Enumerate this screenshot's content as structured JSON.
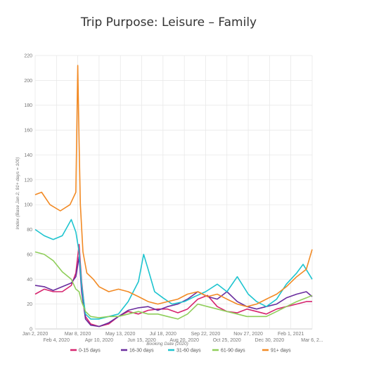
{
  "chart_data": {
    "type": "line",
    "title": "Trip Purpose: Leisure – Family",
    "xlabel": "Booking Date (2020)",
    "ylabel": "Index (Base Jan 2, 91+ days = 100)",
    "ylim": [
      0,
      220
    ],
    "yticks": [
      0,
      20,
      40,
      60,
      80,
      100,
      120,
      140,
      160,
      180,
      200,
      220
    ],
    "xlim": [
      "2020-01-02",
      "2021-03-06"
    ],
    "grid": true,
    "legend_position": "bottom",
    "xticks": [
      {
        "date": "2020-01-02",
        "label": "Jan 2, 2020",
        "row": 0
      },
      {
        "date": "2020-02-04",
        "label": "Feb 4, 2020",
        "row": 1
      },
      {
        "date": "2020-03-08",
        "label": "Mar 8, 2020",
        "row": 0
      },
      {
        "date": "2020-04-10",
        "label": "Apr 10, 2020",
        "row": 1
      },
      {
        "date": "2020-05-13",
        "label": "May 13, 2020",
        "row": 0
      },
      {
        "date": "2020-06-15",
        "label": "Jun 15, 2020",
        "row": 1
      },
      {
        "date": "2020-07-18",
        "label": "Jul 18, 2020",
        "row": 0
      },
      {
        "date": "2020-08-20",
        "label": "Aug 20, 2020",
        "row": 1
      },
      {
        "date": "2020-09-22",
        "label": "Sep 22, 2020",
        "row": 0
      },
      {
        "date": "2020-10-25",
        "label": "Oct 25, 2020",
        "row": 1
      },
      {
        "date": "2020-11-27",
        "label": "Nov 27, 2020",
        "row": 0
      },
      {
        "date": "2020-12-30",
        "label": "Dec 30, 2020",
        "row": 1
      },
      {
        "date": "2021-02-01",
        "label": "Feb 1, 2021",
        "row": 0
      },
      {
        "date": "2021-03-06",
        "label": "Mar 6, 2...",
        "row": 1
      }
    ],
    "series": [
      {
        "name": "0-15 days",
        "color": "#d6246e",
        "points": [
          [
            "2020-01-02",
            28
          ],
          [
            "2020-01-16",
            32
          ],
          [
            "2020-01-30",
            30
          ],
          [
            "2020-02-13",
            30
          ],
          [
            "2020-02-27",
            35
          ],
          [
            "2020-03-05",
            45
          ],
          [
            "2020-03-10",
            68
          ],
          [
            "2020-03-14",
            38
          ],
          [
            "2020-03-20",
            10
          ],
          [
            "2020-03-28",
            4
          ],
          [
            "2020-04-10",
            2
          ],
          [
            "2020-04-25",
            4
          ],
          [
            "2020-05-10",
            10
          ],
          [
            "2020-05-25",
            14
          ],
          [
            "2020-06-10",
            12
          ],
          [
            "2020-06-25",
            15
          ],
          [
            "2020-07-10",
            16
          ],
          [
            "2020-07-25",
            16
          ],
          [
            "2020-08-10",
            13
          ],
          [
            "2020-08-25",
            16
          ],
          [
            "2020-09-10",
            24
          ],
          [
            "2020-09-25",
            27
          ],
          [
            "2020-10-10",
            18
          ],
          [
            "2020-10-25",
            14
          ],
          [
            "2020-11-10",
            13
          ],
          [
            "2020-11-25",
            16
          ],
          [
            "2020-12-10",
            14
          ],
          [
            "2020-12-25",
            12
          ],
          [
            "2021-01-10",
            16
          ],
          [
            "2021-01-25",
            18
          ],
          [
            "2021-02-10",
            20
          ],
          [
            "2021-02-25",
            22
          ],
          [
            "2021-03-06",
            22
          ]
        ]
      },
      {
        "name": "16-30 days",
        "color": "#6a2d9e",
        "points": [
          [
            "2020-01-02",
            35
          ],
          [
            "2020-01-16",
            34
          ],
          [
            "2020-01-30",
            31
          ],
          [
            "2020-02-13",
            34
          ],
          [
            "2020-02-27",
            37
          ],
          [
            "2020-03-05",
            42
          ],
          [
            "2020-03-10",
            58
          ],
          [
            "2020-03-14",
            30
          ],
          [
            "2020-03-20",
            8
          ],
          [
            "2020-03-28",
            3
          ],
          [
            "2020-04-10",
            2
          ],
          [
            "2020-04-25",
            5
          ],
          [
            "2020-05-10",
            10
          ],
          [
            "2020-05-25",
            15
          ],
          [
            "2020-06-10",
            17
          ],
          [
            "2020-06-25",
            18
          ],
          [
            "2020-07-10",
            15
          ],
          [
            "2020-07-25",
            18
          ],
          [
            "2020-08-10",
            20
          ],
          [
            "2020-08-25",
            24
          ],
          [
            "2020-09-10",
            30
          ],
          [
            "2020-09-25",
            26
          ],
          [
            "2020-10-10",
            24
          ],
          [
            "2020-10-25",
            30
          ],
          [
            "2020-11-10",
            22
          ],
          [
            "2020-11-25",
            18
          ],
          [
            "2020-12-10",
            16
          ],
          [
            "2020-12-25",
            18
          ],
          [
            "2021-01-10",
            20
          ],
          [
            "2021-01-25",
            25
          ],
          [
            "2021-02-10",
            28
          ],
          [
            "2021-02-25",
            30
          ],
          [
            "2021-03-06",
            26
          ]
        ]
      },
      {
        "name": "31-60 days",
        "color": "#1ec4cf",
        "points": [
          [
            "2020-01-02",
            80
          ],
          [
            "2020-01-16",
            75
          ],
          [
            "2020-01-30",
            72
          ],
          [
            "2020-02-13",
            75
          ],
          [
            "2020-02-27",
            88
          ],
          [
            "2020-03-05",
            78
          ],
          [
            "2020-03-10",
            62
          ],
          [
            "2020-03-14",
            35
          ],
          [
            "2020-03-20",
            12
          ],
          [
            "2020-03-28",
            8
          ],
          [
            "2020-04-10",
            8
          ],
          [
            "2020-04-25",
            10
          ],
          [
            "2020-05-10",
            12
          ],
          [
            "2020-05-25",
            22
          ],
          [
            "2020-06-10",
            38
          ],
          [
            "2020-06-18",
            60
          ],
          [
            "2020-06-25",
            48
          ],
          [
            "2020-07-05",
            30
          ],
          [
            "2020-07-18",
            25
          ],
          [
            "2020-08-01",
            20
          ],
          [
            "2020-08-20",
            22
          ],
          [
            "2020-09-05",
            26
          ],
          [
            "2020-09-22",
            30
          ],
          [
            "2020-10-10",
            36
          ],
          [
            "2020-10-25",
            30
          ],
          [
            "2020-11-10",
            42
          ],
          [
            "2020-11-27",
            28
          ],
          [
            "2020-12-10",
            22
          ],
          [
            "2020-12-25",
            18
          ],
          [
            "2021-01-10",
            24
          ],
          [
            "2021-01-25",
            36
          ],
          [
            "2021-02-10",
            45
          ],
          [
            "2021-02-20",
            52
          ],
          [
            "2021-03-06",
            40
          ]
        ]
      },
      {
        "name": "61-90 days",
        "color": "#8fce5a",
        "points": [
          [
            "2020-01-02",
            62
          ],
          [
            "2020-01-16",
            60
          ],
          [
            "2020-01-30",
            55
          ],
          [
            "2020-02-13",
            46
          ],
          [
            "2020-02-27",
            40
          ],
          [
            "2020-03-05",
            32
          ],
          [
            "2020-03-10",
            30
          ],
          [
            "2020-03-14",
            22
          ],
          [
            "2020-03-20",
            14
          ],
          [
            "2020-03-28",
            10
          ],
          [
            "2020-04-10",
            9
          ],
          [
            "2020-04-25",
            10
          ],
          [
            "2020-05-10",
            10
          ],
          [
            "2020-05-25",
            12
          ],
          [
            "2020-06-10",
            14
          ],
          [
            "2020-06-25",
            12
          ],
          [
            "2020-07-10",
            12
          ],
          [
            "2020-07-25",
            10
          ],
          [
            "2020-08-10",
            8
          ],
          [
            "2020-08-25",
            12
          ],
          [
            "2020-09-10",
            20
          ],
          [
            "2020-09-25",
            18
          ],
          [
            "2020-10-10",
            16
          ],
          [
            "2020-10-25",
            14
          ],
          [
            "2020-11-10",
            12
          ],
          [
            "2020-11-25",
            10
          ],
          [
            "2020-12-10",
            10
          ],
          [
            "2020-12-25",
            10
          ],
          [
            "2021-01-10",
            14
          ],
          [
            "2021-01-25",
            18
          ],
          [
            "2021-02-10",
            22
          ],
          [
            "2021-02-25",
            25
          ],
          [
            "2021-03-06",
            27
          ]
        ]
      },
      {
        "name": "91+ days",
        "color": "#f28a24",
        "points": [
          [
            "2020-01-02",
            108
          ],
          [
            "2020-01-12",
            110
          ],
          [
            "2020-01-25",
            100
          ],
          [
            "2020-02-10",
            95
          ],
          [
            "2020-02-25",
            100
          ],
          [
            "2020-03-05",
            110
          ],
          [
            "2020-03-08",
            212
          ],
          [
            "2020-03-10",
            150
          ],
          [
            "2020-03-12",
            100
          ],
          [
            "2020-03-16",
            62
          ],
          [
            "2020-03-22",
            45
          ],
          [
            "2020-04-01",
            40
          ],
          [
            "2020-04-10",
            34
          ],
          [
            "2020-04-25",
            30
          ],
          [
            "2020-05-10",
            32
          ],
          [
            "2020-05-25",
            30
          ],
          [
            "2020-06-10",
            26
          ],
          [
            "2020-06-25",
            22
          ],
          [
            "2020-07-10",
            20
          ],
          [
            "2020-07-25",
            22
          ],
          [
            "2020-08-10",
            24
          ],
          [
            "2020-08-25",
            28
          ],
          [
            "2020-09-10",
            30
          ],
          [
            "2020-09-25",
            26
          ],
          [
            "2020-10-10",
            28
          ],
          [
            "2020-10-25",
            24
          ],
          [
            "2020-11-10",
            20
          ],
          [
            "2020-11-25",
            18
          ],
          [
            "2020-12-10",
            20
          ],
          [
            "2020-12-25",
            24
          ],
          [
            "2021-01-10",
            28
          ],
          [
            "2021-01-25",
            34
          ],
          [
            "2021-02-10",
            42
          ],
          [
            "2021-02-25",
            48
          ],
          [
            "2021-03-06",
            64
          ]
        ]
      }
    ]
  }
}
